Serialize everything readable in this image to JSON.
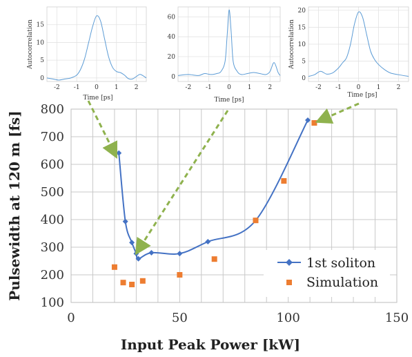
{
  "chart_data": [
    {
      "type": "scatter",
      "title": "",
      "xlabel": "Input Peak Power [kW]",
      "ylabel": "Pulsewidth at 120 m [fs]",
      "xlim": [
        0,
        150
      ],
      "ylim": [
        100,
        800
      ],
      "xticks": [
        0,
        50,
        100,
        150
      ],
      "yticks": [
        100,
        200,
        300,
        400,
        500,
        600,
        700,
        800
      ],
      "grid": true,
      "legend": "lower-right",
      "series": [
        {
          "name": "1st soliton",
          "style": "line-with-diamond-markers",
          "color": "#4472c4",
          "x": [
            22,
            25,
            28,
            30,
            31,
            37,
            50,
            63,
            85,
            109
          ],
          "y": [
            641,
            393,
            317,
            277,
            258,
            280,
            277,
            320,
            397,
            760
          ]
        },
        {
          "name": "Simulation",
          "style": "square-markers",
          "color": "#ed7d31",
          "x": [
            20,
            24,
            28,
            33,
            50,
            66,
            85,
            98,
            112
          ],
          "y": [
            228,
            172,
            165,
            178,
            200,
            257,
            397,
            540,
            750
          ]
        }
      ],
      "annotations": [
        {
          "type": "dashed-arrow",
          "color": "#8fb24e",
          "from": "inset-1",
          "to_data": [
            20,
            640
          ]
        },
        {
          "type": "dashed-arrow",
          "color": "#8fb24e",
          "from": "inset-2",
          "to_data": [
            31,
            290
          ]
        },
        {
          "type": "dashed-arrow",
          "color": "#8fb24e",
          "from": "inset-3",
          "to_data": [
            115,
            760
          ]
        }
      ]
    },
    {
      "type": "line",
      "title": "",
      "xlabel": "Time [ps]",
      "ylabel": "Autocorrelation",
      "xlim": [
        -2.5,
        2.5
      ],
      "ylim": [
        -1,
        20
      ],
      "xticks": [
        -2,
        -1,
        0,
        1,
        2
      ],
      "yticks": [
        0,
        5,
        10,
        15
      ],
      "grid": true,
      "series": [
        {
          "color": "#5b9bd5",
          "x": [
            -2.5,
            -2.2,
            -1.9,
            -1.6,
            -1.3,
            -1.0,
            -0.8,
            -0.6,
            -0.4,
            -0.2,
            0.0,
            0.2,
            0.4,
            0.6,
            0.8,
            1.0,
            1.2,
            1.4,
            1.6,
            1.8,
            2.0,
            2.2,
            2.5
          ],
          "y": [
            0,
            -0.3,
            -0.6,
            -0.3,
            0,
            0.8,
            2.5,
            5.5,
            10,
            14.5,
            17.5,
            16,
            11,
            6,
            3,
            1.8,
            1.5,
            0.8,
            -0.2,
            -0.3,
            0.4,
            1.0,
            0
          ]
        }
      ]
    },
    {
      "type": "line",
      "title": "",
      "xlabel": "Time [ps]",
      "ylabel": "",
      "xlim": [
        -2.5,
        2.5
      ],
      "ylim": [
        -5,
        70
      ],
      "xticks": [
        -2,
        -1,
        0,
        1,
        2
      ],
      "yticks": [
        0,
        20,
        40,
        60
      ],
      "grid": true,
      "series": [
        {
          "color": "#5b9bd5",
          "x": [
            -2.5,
            -2.0,
            -1.5,
            -1.2,
            -0.9,
            -0.6,
            -0.4,
            -0.2,
            -0.1,
            0.0,
            0.1,
            0.2,
            0.4,
            0.6,
            0.9,
            1.2,
            1.5,
            1.8,
            2.0,
            2.2,
            2.4,
            2.5
          ],
          "y": [
            1,
            2,
            1,
            3,
            2,
            3,
            5,
            15,
            40,
            67,
            45,
            15,
            5,
            2,
            3,
            4,
            3,
            2,
            5,
            14,
            4,
            1
          ]
        }
      ]
    },
    {
      "type": "line",
      "title": "",
      "xlabel": "Time [ps]",
      "ylabel": "Autocorrelation",
      "xlim": [
        -2.5,
        2.5
      ],
      "ylim": [
        -1,
        21
      ],
      "xticks": [
        -2,
        -1,
        0,
        1,
        2
      ],
      "yticks": [
        0,
        5,
        10,
        15,
        20
      ],
      "grid": true,
      "series": [
        {
          "color": "#5b9bd5",
          "x": [
            -2.5,
            -2.2,
            -1.9,
            -1.6,
            -1.3,
            -1.0,
            -0.8,
            -0.6,
            -0.4,
            -0.2,
            0.0,
            0.2,
            0.4,
            0.6,
            0.8,
            1.0,
            1.3,
            1.6,
            2.0,
            2.5
          ],
          "y": [
            0.5,
            1.0,
            2.0,
            1.2,
            1.5,
            3.0,
            4.5,
            6.0,
            10.0,
            16.0,
            19.5,
            18.0,
            13.0,
            8.0,
            5.5,
            4.0,
            2.5,
            1.5,
            1.0,
            0.5
          ]
        }
      ]
    }
  ]
}
